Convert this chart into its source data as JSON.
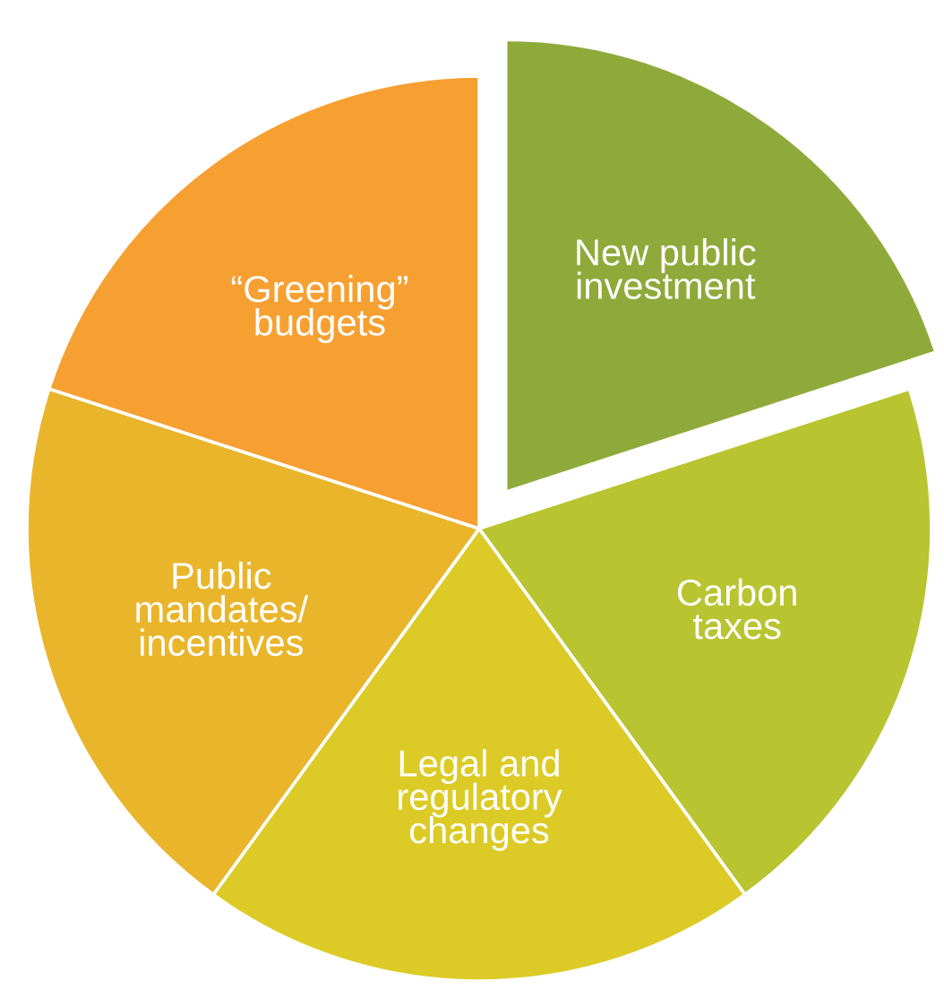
{
  "chart_data": {
    "type": "pie",
    "categories": [
      "New public\ninvestment",
      "Carbon\ntaxes",
      "Legal and\nregulatory\nchanges",
      "Public\nmandates/\nincentives",
      "“Greening”\nbudgets"
    ],
    "values": [
      20,
      20,
      20,
      20,
      20
    ],
    "colors": [
      "#8faa3a",
      "#b8c430",
      "#dccb26",
      "#e9b52b",
      "#f6a032"
    ]
  }
}
